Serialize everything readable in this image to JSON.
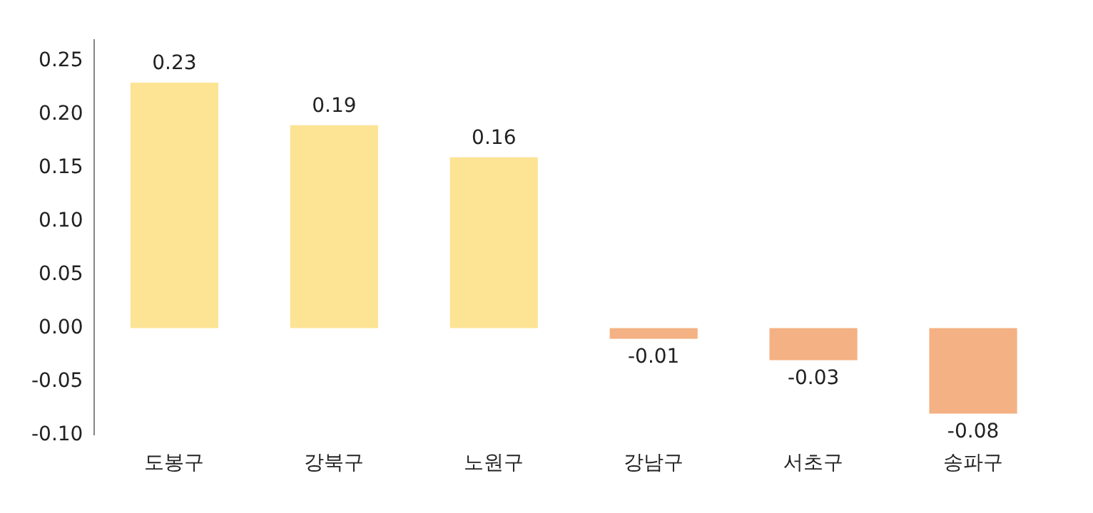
{
  "chart_data": {
    "type": "bar",
    "categories": [
      "도봉구",
      "강북구",
      "노원구",
      "강남구",
      "서초구",
      "송파구"
    ],
    "values": [
      0.23,
      0.19,
      0.16,
      -0.01,
      -0.03,
      -0.08
    ],
    "colors": [
      "#fde394",
      "#fde394",
      "#fde394",
      "#f4b183",
      "#f4b183",
      "#f4b183"
    ],
    "ylim": [
      -0.1,
      0.27
    ],
    "yticks": [
      {
        "value": -0.1,
        "label": "-0.10"
      },
      {
        "value": -0.05,
        "label": "-0.05"
      },
      {
        "value": 0,
        "label": "0.00"
      },
      {
        "value": 0.05,
        "label": "0.05"
      },
      {
        "value": 0.1,
        "label": "0.10"
      },
      {
        "value": 0.15,
        "label": "0.15"
      },
      {
        "value": 0.2,
        "label": "0.20"
      },
      {
        "value": 0.25,
        "label": "0.25"
      }
    ],
    "grid": false,
    "legend": false,
    "data_labels": true
  }
}
